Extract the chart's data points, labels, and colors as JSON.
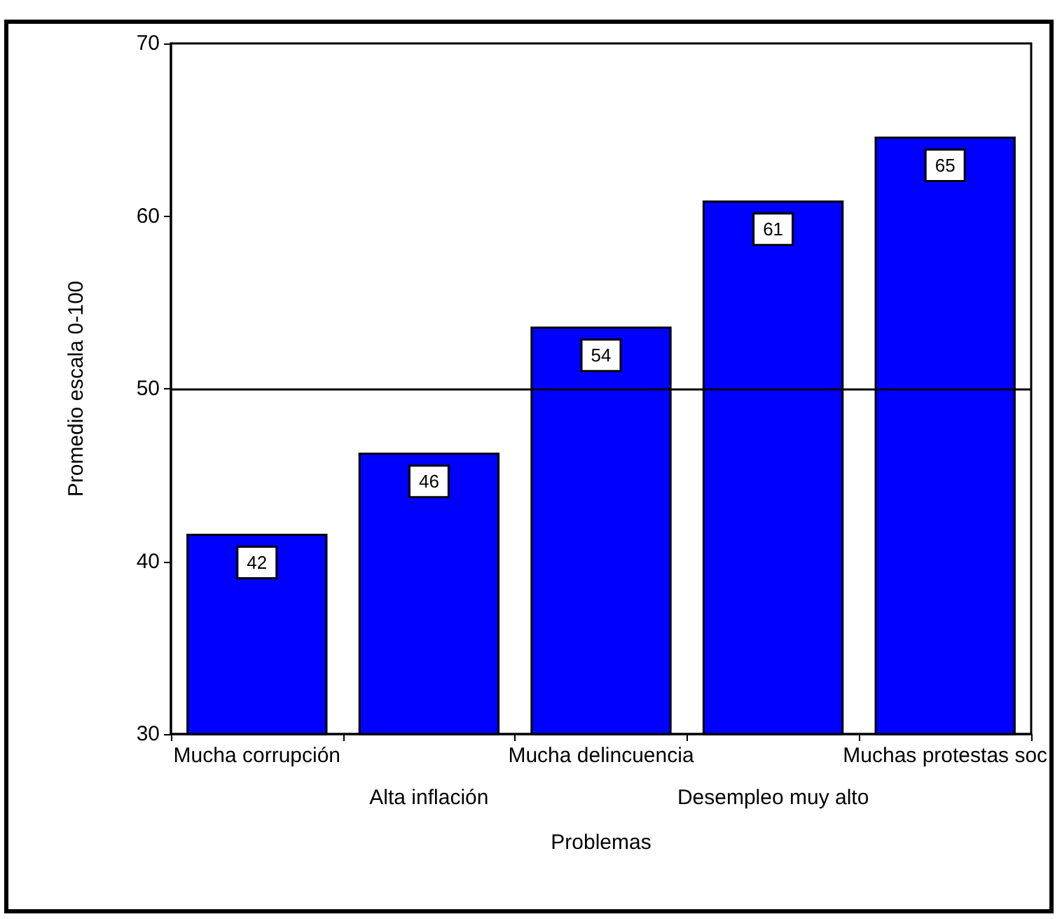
{
  "chart_data": {
    "type": "bar",
    "xlabel": "Problemas",
    "ylabel": "Promedio escala 0-100",
    "categories": [
      "Mucha corrupción",
      "Alta inflación",
      "Mucha delincuencia",
      "Desempleo muy alto",
      "Muchas protestas soc"
    ],
    "values": [
      41.6,
      46.3,
      53.6,
      60.9,
      64.6
    ],
    "value_labels": [
      "42",
      "46",
      "54",
      "61",
      "65"
    ],
    "color": "#0000ff",
    "ylim": [
      30,
      70
    ],
    "yticks": [
      30,
      40,
      50,
      60,
      70
    ],
    "ref_lines": [
      {
        "axis": "y",
        "value": 50,
        "color": "#000000"
      }
    ],
    "grid": false
  }
}
